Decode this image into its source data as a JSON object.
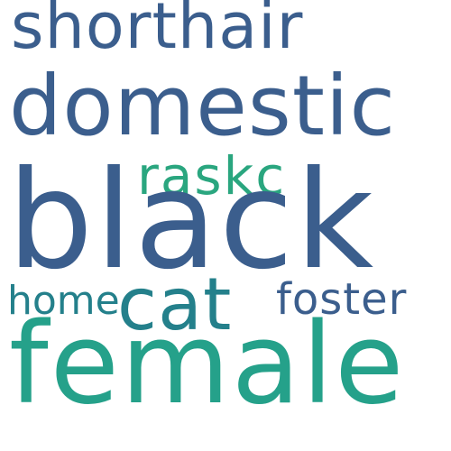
{
  "words": {
    "shorthair": {
      "text": "shorthair",
      "color": "#3b5e8d"
    },
    "domestic": {
      "text": "domestic",
      "color": "#3b5e8d"
    },
    "raskc": {
      "text": "raskc",
      "color": "#2aa67f"
    },
    "black": {
      "text": "black",
      "color": "#3b5e8d"
    },
    "home": {
      "text": "home",
      "color": "#24808b"
    },
    "cat": {
      "text": "cat",
      "color": "#24808b"
    },
    "foster": {
      "text": "foster",
      "color": "#3b5e8d"
    },
    "female": {
      "text": "female",
      "color": "#25a18a"
    }
  }
}
